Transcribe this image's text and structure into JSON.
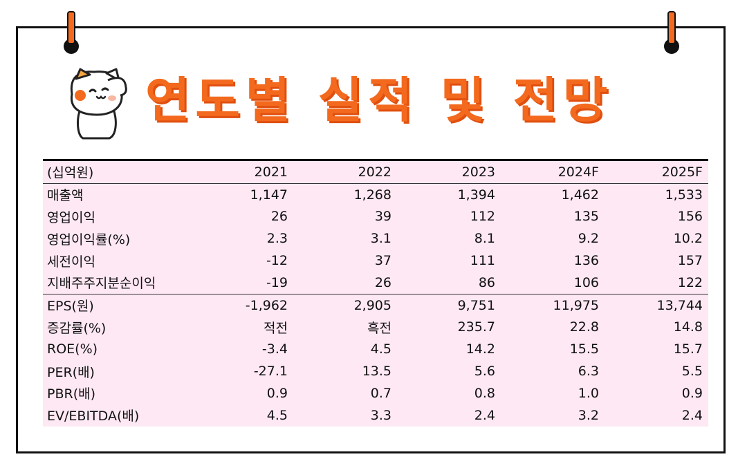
{
  "title": "연도별 실적 및 전망",
  "table": {
    "unit": "(십억원)",
    "years": [
      "2021",
      "2022",
      "2023",
      "2024F",
      "2025F"
    ],
    "group1": [
      {
        "label": "매출액",
        "values": [
          "1,147",
          "1,268",
          "1,394",
          "1,462",
          "1,533"
        ]
      },
      {
        "label": "영업이익",
        "values": [
          "26",
          "39",
          "112",
          "135",
          "156"
        ]
      },
      {
        "label": "영업이익률(%)",
        "values": [
          "2.3",
          "3.1",
          "8.1",
          "9.2",
          "10.2"
        ]
      },
      {
        "label": "세전이익",
        "values": [
          "-12",
          "37",
          "111",
          "136",
          "157"
        ]
      },
      {
        "label": "지배주주지분순이익",
        "values": [
          "-19",
          "26",
          "86",
          "106",
          "122"
        ]
      }
    ],
    "group2": [
      {
        "label": "EPS(원)",
        "values": [
          "-1,962",
          "2,905",
          "9,751",
          "11,975",
          "13,744"
        ]
      },
      {
        "label": "증감률(%)",
        "values": [
          "적전",
          "흑전",
          "235.7",
          "22.8",
          "14.8"
        ]
      },
      {
        "label": "ROE(%)",
        "values": [
          "-3.4",
          "4.5",
          "14.2",
          "15.5",
          "15.7"
        ]
      },
      {
        "label": "PER(배)",
        "values": [
          "-27.1",
          "13.5",
          "5.6",
          "6.3",
          "5.5"
        ]
      },
      {
        "label": "PBR(배)",
        "values": [
          "0.9",
          "0.7",
          "0.8",
          "1.0",
          "0.9"
        ]
      },
      {
        "label": "EV/EBITDA(배)",
        "values": [
          "4.5",
          "3.3",
          "2.4",
          "3.2",
          "2.4"
        ]
      }
    ]
  },
  "colors": {
    "accent": "#f36a1e",
    "table_bg": "#fde8f3",
    "border": "#111111"
  }
}
